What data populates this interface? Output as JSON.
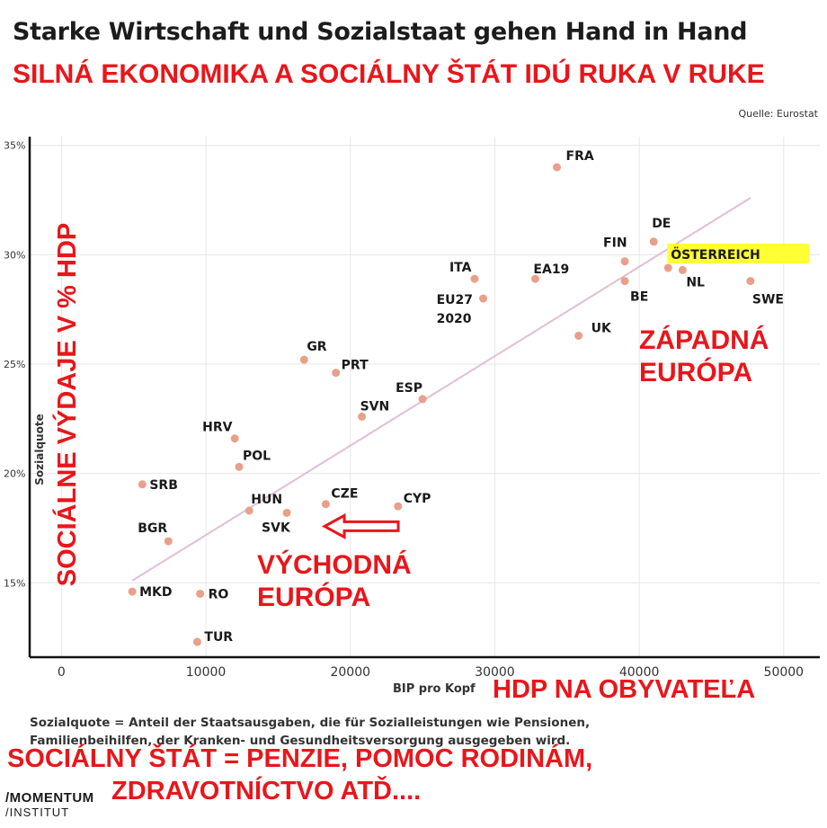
{
  "header": {
    "title": "Starke Wirtschaft und Sozialstaat gehen Hand in Hand",
    "subtitle": "SILNÁ EKONOMIKA A SOCIÁLNY ŠTÁT IDÚ RUKA V RUKE",
    "source": "Quelle: Eurostat"
  },
  "colors": {
    "point": "#e8a08a",
    "trend": "#e2bfd6",
    "grid": "#e6e6e6",
    "annotation_red": "#e8161b",
    "highlight": "#ffff33"
  },
  "chart_data": {
    "type": "scatter",
    "xlabel": "BIP pro Kopf",
    "ylabel": "Sozialquote",
    "x_ticks": [
      0,
      10000,
      20000,
      30000,
      40000,
      50000
    ],
    "x_tick_labels": [
      "0",
      "10000",
      "20000",
      "30000",
      "40000",
      "50000"
    ],
    "y_ticks": [
      15,
      20,
      25,
      30,
      35
    ],
    "y_tick_labels": [
      "15%",
      "20%",
      "25%",
      "30%",
      "35%"
    ],
    "xlim": [
      -2200,
      52500
    ],
    "ylim": [
      11.6,
      35.4
    ],
    "grid": true,
    "points": [
      {
        "label": "FRA",
        "x": 34300,
        "y": 34.0
      },
      {
        "label": "DE",
        "x": 41000,
        "y": 30.6
      },
      {
        "label": "FIN",
        "x": 39000,
        "y": 29.7
      },
      {
        "label": "ÖSTERREICH",
        "x": 42000,
        "y": 29.4,
        "highlight": true
      },
      {
        "label": "NL",
        "x": 43000,
        "y": 29.3
      },
      {
        "label": "BE",
        "x": 39000,
        "y": 28.8
      },
      {
        "label": "SWE",
        "x": 47700,
        "y": 28.8
      },
      {
        "label": "ITA",
        "x": 28600,
        "y": 28.9
      },
      {
        "label": "EA19",
        "x": 32800,
        "y": 28.9
      },
      {
        "label": "EU27\n2020",
        "x": 29200,
        "y": 28.0
      },
      {
        "label": "UK",
        "x": 35800,
        "y": 26.3
      },
      {
        "label": "GR",
        "x": 16800,
        "y": 25.2
      },
      {
        "label": "PRT",
        "x": 19000,
        "y": 24.6
      },
      {
        "label": "ESP",
        "x": 25000,
        "y": 23.4
      },
      {
        "label": "SVN",
        "x": 20800,
        "y": 22.6
      },
      {
        "label": "HRV",
        "x": 12000,
        "y": 21.6
      },
      {
        "label": "POL",
        "x": 12300,
        "y": 20.3
      },
      {
        "label": "SRB",
        "x": 5600,
        "y": 19.5
      },
      {
        "label": "HUN",
        "x": 13000,
        "y": 18.3
      },
      {
        "label": "SVK",
        "x": 15600,
        "y": 18.2
      },
      {
        "label": "CZE",
        "x": 18300,
        "y": 18.6
      },
      {
        "label": "CYP",
        "x": 23300,
        "y": 18.5
      },
      {
        "label": "BGR",
        "x": 7400,
        "y": 16.9
      },
      {
        "label": "MKD",
        "x": 4900,
        "y": 14.6
      },
      {
        "label": "RO",
        "x": 9600,
        "y": 14.5
      },
      {
        "label": "TUR",
        "x": 9400,
        "y": 12.3
      }
    ],
    "trendline": {
      "x": [
        4900,
        47700
      ],
      "y": [
        15.1,
        32.6
      ]
    }
  },
  "annotations": {
    "y_axis_red": "SOCIÁLNE VÝDAJE V % HDP",
    "x_axis_red": "HDP NA OBYVATEĽA",
    "west": [
      "ZÁPADNÁ",
      "EURÓPA"
    ],
    "east": [
      "VÝCHODNÁ",
      "EURÓPA"
    ],
    "arrow_target": "SVK"
  },
  "footer": {
    "definition": "Sozialquote = Anteil der Staatsausgaben, die für Sozialleistungen wie Pensionen, Familienbeihilfen, der Kranken- und Gesundheitsversorgung ausgegeben wird.",
    "red_line1": "SOCIÁLNY ŠTÁT = PENZIE, POMOC RODINÁM,",
    "red_line2": "ZDRAVOTNÍCTVO  ATĎ....",
    "logo_line1": "/MOMENTUM",
    "logo_line2": "/INSTITUT"
  }
}
